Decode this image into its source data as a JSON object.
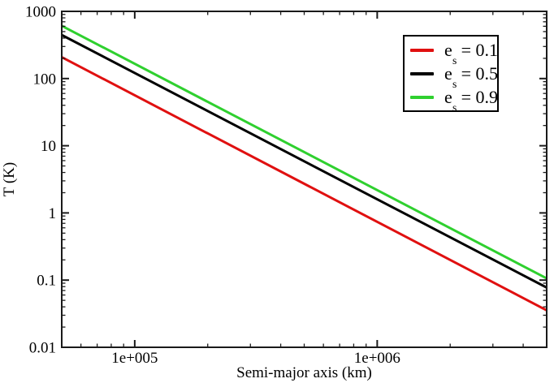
{
  "chart_data": {
    "type": "line",
    "title": "",
    "xlabel": "Semi-major axis (km)",
    "ylabel": "T (K)",
    "xscale": "log",
    "yscale": "log",
    "xlim": [
      50000,
      5000000
    ],
    "ylim": [
      0.01,
      1000
    ],
    "grid": false,
    "legend_position": "upper right",
    "frame_color": "#1a1a1a",
    "background_color": "#ffffff",
    "x_major_ticks": [
      {
        "value": 100000,
        "label": "1e+005"
      },
      {
        "value": 1000000,
        "label": "1e+006"
      }
    ],
    "y_major_ticks": [
      {
        "value": 1000,
        "label": "1000"
      },
      {
        "value": 100,
        "label": "100"
      },
      {
        "value": 10,
        "label": "10"
      },
      {
        "value": 1,
        "label": "1"
      },
      {
        "value": 0.1,
        "label": "0.1"
      },
      {
        "value": 0.01,
        "label": "0.01"
      }
    ],
    "series": [
      {
        "name_prefix": "e",
        "name_sub": "s",
        "name_rest": " = 0.1",
        "color": "#e01010",
        "line_width": 3,
        "x": [
          50000,
          5000000
        ],
        "y": [
          208,
          0.0355
        ]
      },
      {
        "name_prefix": "e",
        "name_sub": "s",
        "name_rest": " = 0.5",
        "color": "#000000",
        "line_width": 3,
        "x": [
          50000,
          5000000
        ],
        "y": [
          445,
          0.0775
        ]
      },
      {
        "name_prefix": "e",
        "name_sub": "s",
        "name_rest": " = 0.9",
        "color": "#2fd02f",
        "line_width": 3,
        "x": [
          50000,
          5000000
        ],
        "y": [
          610,
          0.106
        ]
      }
    ]
  }
}
